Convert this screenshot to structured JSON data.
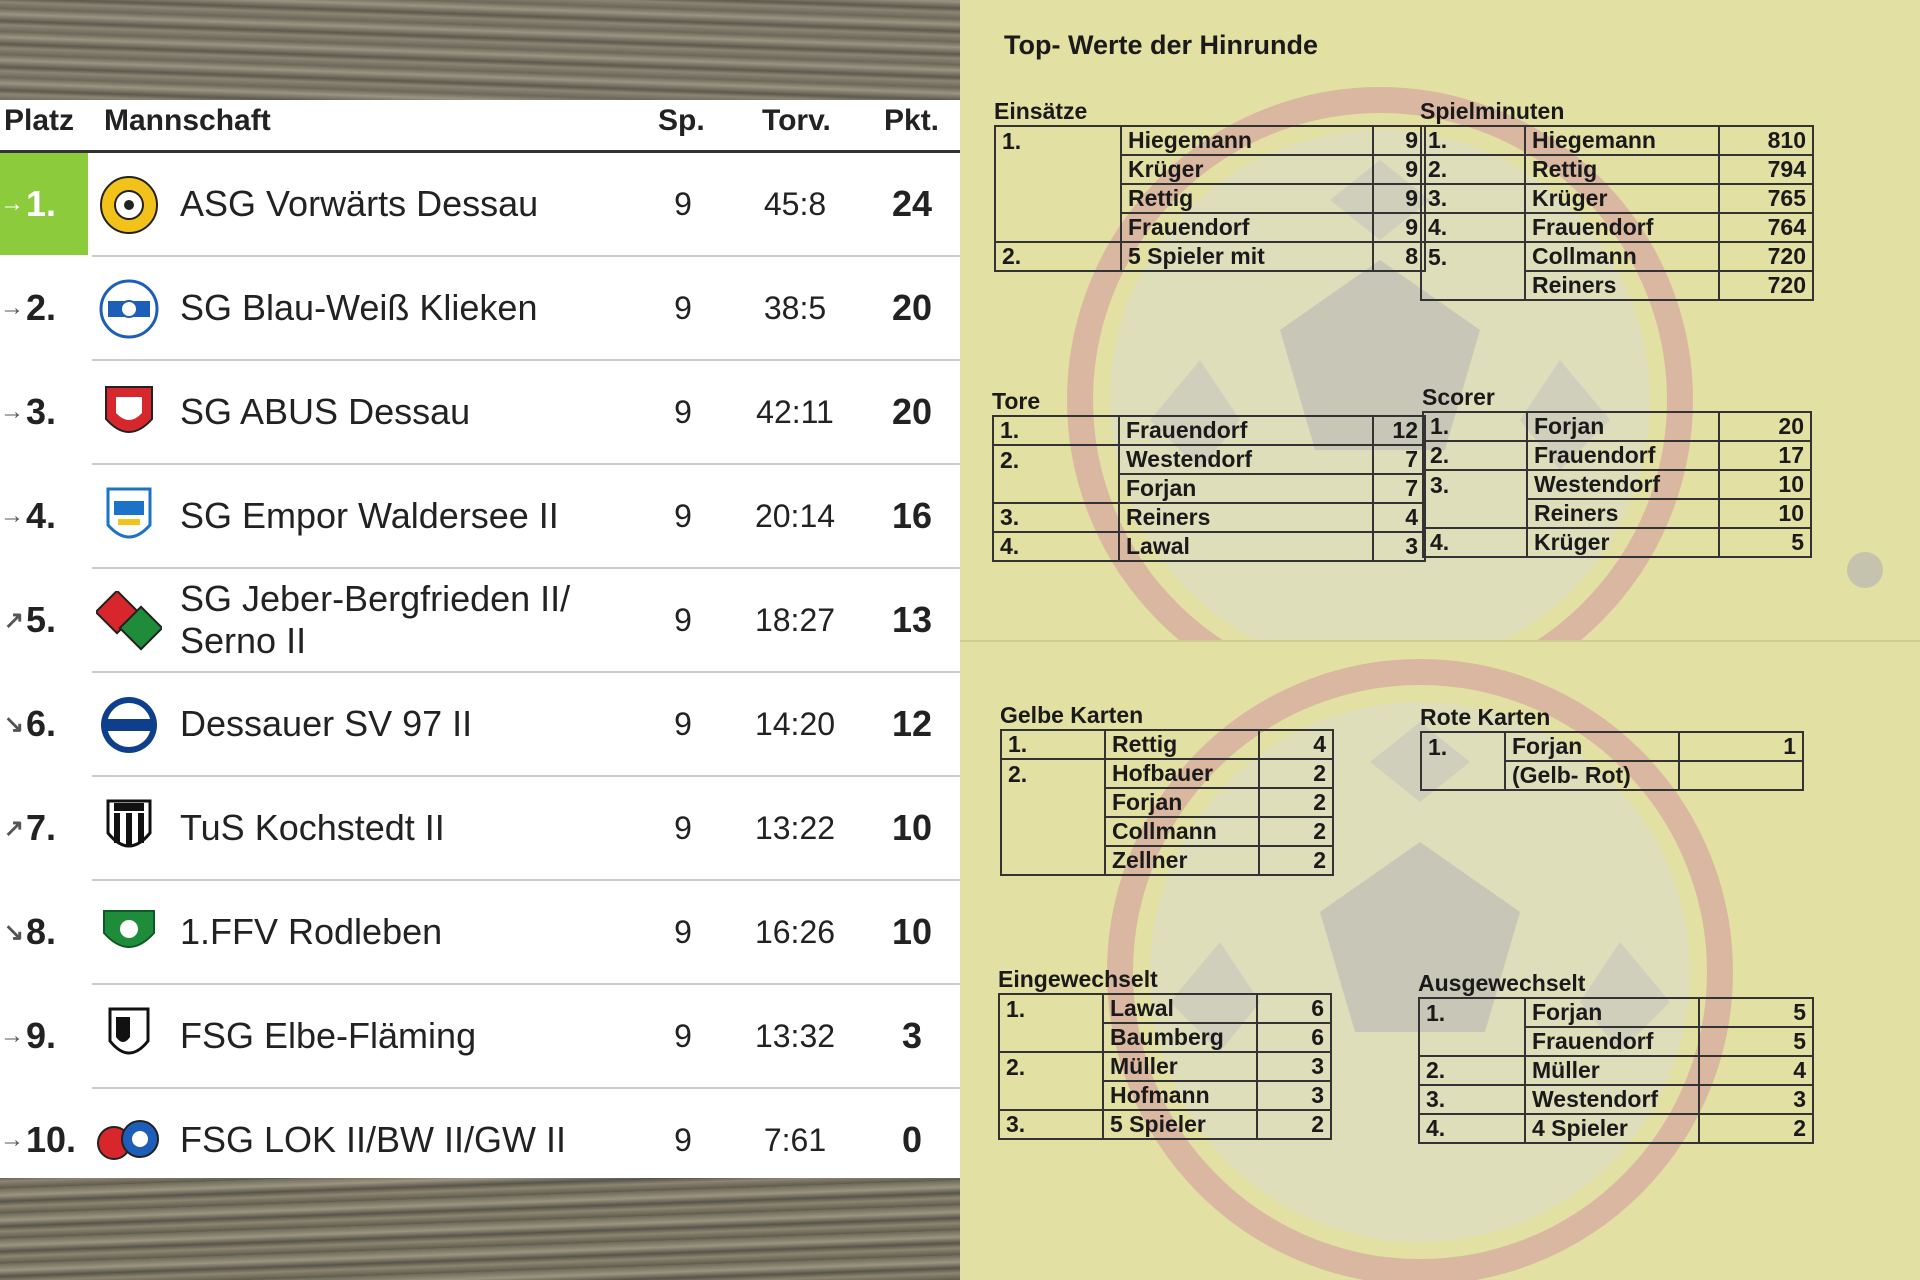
{
  "standings": {
    "headers": {
      "platz": "Platz",
      "mannschaft": "Mannschaft",
      "sp": "Sp.",
      "torv": "Torv.",
      "pkt": "Pkt."
    },
    "rows": [
      {
        "arrow": "→",
        "rank": "1.",
        "team": "ASG Vorwärts Dessau",
        "sp": "9",
        "torv": "45:8",
        "pkt": "24",
        "logo": "asg-vorwaerts-logo"
      },
      {
        "arrow": "→",
        "rank": "2.",
        "team": "SG Blau-Weiß Klieken",
        "sp": "9",
        "torv": "38:5",
        "pkt": "20",
        "logo": "blau-weiss-klieken-logo"
      },
      {
        "arrow": "→",
        "rank": "3.",
        "team": "SG ABUS Dessau",
        "sp": "9",
        "torv": "42:11",
        "pkt": "20",
        "logo": "abus-dessau-logo"
      },
      {
        "arrow": "→",
        "rank": "4.",
        "team": "SG Empor Waldersee II",
        "sp": "9",
        "torv": "20:14",
        "pkt": "16",
        "logo": "empor-waldersee-logo"
      },
      {
        "arrow": "↗",
        "rank": "5.",
        "team": "SG Jeber-Bergfrieden II/ Serno II",
        "sp": "9",
        "torv": "18:27",
        "pkt": "13",
        "logo": "jeber-bergfrieden-logo"
      },
      {
        "arrow": "↘",
        "rank": "6.",
        "team": "Dessauer SV 97 II",
        "sp": "9",
        "torv": "14:20",
        "pkt": "12",
        "logo": "dessauer-sv-logo"
      },
      {
        "arrow": "↗",
        "rank": "7.",
        "team": "TuS Kochstedt II",
        "sp": "9",
        "torv": "13:22",
        "pkt": "10",
        "logo": "tus-kochstedt-logo"
      },
      {
        "arrow": "↘",
        "rank": "8.",
        "team": "1.FFV Rodleben",
        "sp": "9",
        "torv": "16:26",
        "pkt": "10",
        "logo": "ffv-rodleben-logo"
      },
      {
        "arrow": "→",
        "rank": "9.",
        "team": "FSG Elbe-Fläming",
        "sp": "9",
        "torv": "13:32",
        "pkt": "3",
        "logo": "fsg-elbe-flaeming-logo"
      },
      {
        "arrow": "→",
        "rank": "10.",
        "team": "FSG LOK II/BW II/GW II",
        "sp": "9",
        "torv": "7:61",
        "pkt": "0",
        "logo": "fsg-lok-logo"
      }
    ],
    "leader_color": "#8ccc3c"
  },
  "paper": {
    "title": "Top- Werte der Hinrunde",
    "tables": {
      "einsaetze": {
        "title": "Einsätze",
        "rows": [
          {
            "rank": "1.",
            "name": "Hiegemann",
            "value": "9"
          },
          {
            "rank": "",
            "name": "Krüger",
            "value": "9"
          },
          {
            "rank": "",
            "name": "Rettig",
            "value": "9"
          },
          {
            "rank": "",
            "name": "Frauendorf",
            "value": "9"
          },
          {
            "rank": "2.",
            "name": "5 Spieler mit",
            "value": "8"
          }
        ]
      },
      "spielminuten": {
        "title": "Spielminuten",
        "rows": [
          {
            "rank": "1.",
            "name": "Hiegemann",
            "value": "810"
          },
          {
            "rank": "2.",
            "name": "Rettig",
            "value": "794"
          },
          {
            "rank": "3.",
            "name": "Krüger",
            "value": "765"
          },
          {
            "rank": "4.",
            "name": "Frauendorf",
            "value": "764"
          },
          {
            "rank": "5.",
            "name": "Collmann",
            "value": "720"
          },
          {
            "rank": "",
            "name": "Reiners",
            "value": "720"
          }
        ]
      },
      "tore": {
        "title": "Tore",
        "rows": [
          {
            "rank": "1.",
            "name": "Frauendorf",
            "value": "12"
          },
          {
            "rank": "2.",
            "name": "Westendorf",
            "value": "7"
          },
          {
            "rank": "",
            "name": "Forjan",
            "value": "7"
          },
          {
            "rank": "3.",
            "name": "Reiners",
            "value": "4"
          },
          {
            "rank": "4.",
            "name": "Lawal",
            "value": "3"
          }
        ]
      },
      "scorer": {
        "title": "Scorer",
        "rows": [
          {
            "rank": "1.",
            "name": "Forjan",
            "value": "20"
          },
          {
            "rank": "2.",
            "name": "Frauendorf",
            "value": "17"
          },
          {
            "rank": "3.",
            "name": "Westendorf",
            "value": "10"
          },
          {
            "rank": "",
            "name": "Reiners",
            "value": "10"
          },
          {
            "rank": "4.",
            "name": "Krüger",
            "value": "5"
          }
        ]
      },
      "gelbe": {
        "title": "Gelbe Karten",
        "rows": [
          {
            "rank": "1.",
            "name": "Rettig",
            "value": "4"
          },
          {
            "rank": "2.",
            "name": "Hofbauer",
            "value": "2"
          },
          {
            "rank": "",
            "name": "Forjan",
            "value": "2"
          },
          {
            "rank": "",
            "name": "Collmann",
            "value": "2"
          },
          {
            "rank": "",
            "name": "Zellner",
            "value": "2"
          }
        ]
      },
      "rote": {
        "title": "Rote Karten",
        "rows": [
          {
            "rank": "1.",
            "name": "Forjan",
            "value": "1"
          },
          {
            "rank": "",
            "name": "(Gelb- Rot)",
            "value": ""
          }
        ]
      },
      "eingewechselt": {
        "title": "Eingewechselt",
        "rows": [
          {
            "rank": "1.",
            "name": "Lawal",
            "value": "6"
          },
          {
            "rank": "",
            "name": "Baumberg",
            "value": "6"
          },
          {
            "rank": "2.",
            "name": "Müller",
            "value": "3"
          },
          {
            "rank": "",
            "name": "Hofmann",
            "value": "3"
          },
          {
            "rank": "3.",
            "name": "5 Spieler",
            "value": "2"
          }
        ]
      },
      "ausgewechselt": {
        "title": "Ausgewechselt",
        "rows": [
          {
            "rank": "1.",
            "name": "Forjan",
            "value": "5"
          },
          {
            "rank": "",
            "name": "Frauendorf",
            "value": "5"
          },
          {
            "rank": "2.",
            "name": "Müller",
            "value": "4"
          },
          {
            "rank": "3.",
            "name": "Westendorf",
            "value": "3"
          },
          {
            "rank": "4.",
            "name": "4 Spieler",
            "value": "2"
          }
        ]
      }
    },
    "colors": {
      "paper": "#e6e3a6",
      "ghost_logo": "#c9c6b8",
      "ghost_ring": "#d9a6a0"
    }
  }
}
